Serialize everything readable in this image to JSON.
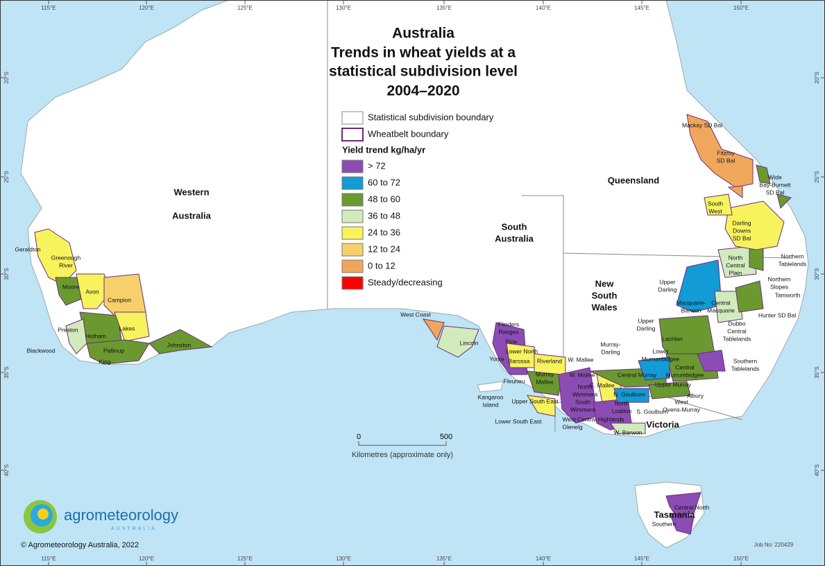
{
  "title": [
    "Australia",
    "Trends in wheat yields at a",
    "statistical subdivision level",
    "2004–2020"
  ],
  "legend": {
    "boundaries": [
      "Statistical subdivision boundary",
      "Wheatbelt boundary"
    ],
    "heading": "Yield trend kg/ha/yr",
    "classes": [
      {
        "label": "> 72",
        "color": "#8b4db3"
      },
      {
        "label": "60 to 72",
        "color": "#129bd4"
      },
      {
        "label": "48 to 60",
        "color": "#6a9a2f"
      },
      {
        "label": "36 to 48",
        "color": "#d2ebbd"
      },
      {
        "label": "24 to 36",
        "color": "#f7f35c"
      },
      {
        "label": "12 to 24",
        "color": "#f6d06a"
      },
      {
        "label": "0 to 12",
        "color": "#f0a75c"
      },
      {
        "label": "Steady/decreasing",
        "color": "#ff0000"
      }
    ]
  },
  "states": [
    [
      "Western"
    ],
    [
      "Australia"
    ],
    [
      "South",
      "Australia"
    ],
    [
      "Queensland"
    ],
    [
      "New",
      "South",
      "Wales"
    ],
    [
      "Victoria"
    ],
    [
      "Tasmania"
    ]
  ],
  "subdivisions": [
    [
      "Geraldton"
    ],
    [
      "Greenough",
      "River"
    ],
    [
      "Moore"
    ],
    [
      "Avon"
    ],
    [
      "Campion"
    ],
    [
      "Preston"
    ],
    [
      "Lakes"
    ],
    [
      "Hotham"
    ],
    [
      "Blackwood"
    ],
    [
      "Pallinup"
    ],
    [
      "King"
    ],
    [
      "Johnston"
    ],
    [
      "West Coast"
    ],
    [
      "Lincoln"
    ],
    [
      "Flinders",
      "Ranges"
    ],
    [
      "Pirie"
    ],
    [
      "Lower North"
    ],
    [
      "Yorke"
    ],
    [
      "Barossa"
    ],
    [
      "Riverland"
    ],
    [
      "W. Mallee"
    ],
    [
      "Murray-",
      "Darling"
    ],
    [
      "Murray",
      "Mallee"
    ],
    [
      "Fleurieu"
    ],
    [
      "Kangaroo",
      "Island"
    ],
    [
      "Upper South East"
    ],
    [
      "Lower South East"
    ],
    [
      "W. Mallee"
    ],
    [
      "Central Murray"
    ],
    [
      "E. Mallee"
    ],
    [
      "North",
      "Wimmera"
    ],
    [
      "N. Goulburn"
    ],
    [
      "Upper Murray"
    ],
    [
      "South",
      "Wimmera"
    ],
    [
      "North",
      "Loddon"
    ],
    [
      "S. Goulburn"
    ],
    [
      "West Central Highlands"
    ],
    [
      "Glenelg"
    ],
    [
      "W. Barwon"
    ],
    [
      "Albury"
    ],
    [
      "West",
      "Ovens-Murray"
    ],
    [
      "Upper",
      "Darling"
    ],
    [
      "Upper",
      "Darling"
    ],
    [
      "Macquarie-",
      "Barwon"
    ],
    [
      "Central",
      "Macquarie"
    ],
    [
      "North",
      "Central",
      "Plain"
    ],
    [
      "Northern",
      "Tablelands"
    ],
    [
      "Northern",
      "Slopes"
    ],
    [
      "Tamworth"
    ],
    [
      "Hunter SD Bal"
    ],
    [
      "Dubbo",
      "Central",
      "Tablelands"
    ],
    [
      "Lachlan"
    ],
    [
      "Lower",
      "Murrumbidgee"
    ],
    [
      "Central",
      "Murrumbidgee"
    ],
    [
      "Southern",
      "Tablelands"
    ],
    [
      "Mackay SD Bal"
    ],
    [
      "Fitzroy",
      "SD Bal"
    ],
    [
      "Wide",
      "Bay-Burnett",
      "SD Bal"
    ],
    [
      "South",
      "West"
    ],
    [
      "Darling",
      "Downs",
      "SD Bal"
    ],
    [
      "Central North"
    ],
    [
      "Southern"
    ]
  ],
  "longitude_labels": [
    "115°E",
    "120°E",
    "125°E",
    "130°E",
    "135°E",
    "140°E",
    "145°E",
    "150°E"
  ],
  "latitude_labels": [
    "20°S",
    "25°S",
    "30°S",
    "35°S",
    "40°S"
  ],
  "scale": {
    "start": "0",
    "end": "500",
    "caption": "Kilometres (approximate only)"
  },
  "logo": {
    "name": "agrometeorology",
    "sub": "AUSTRALIA"
  },
  "copyright": "© Agrometeorology Australia, 2022",
  "job": "Job No: 220429"
}
